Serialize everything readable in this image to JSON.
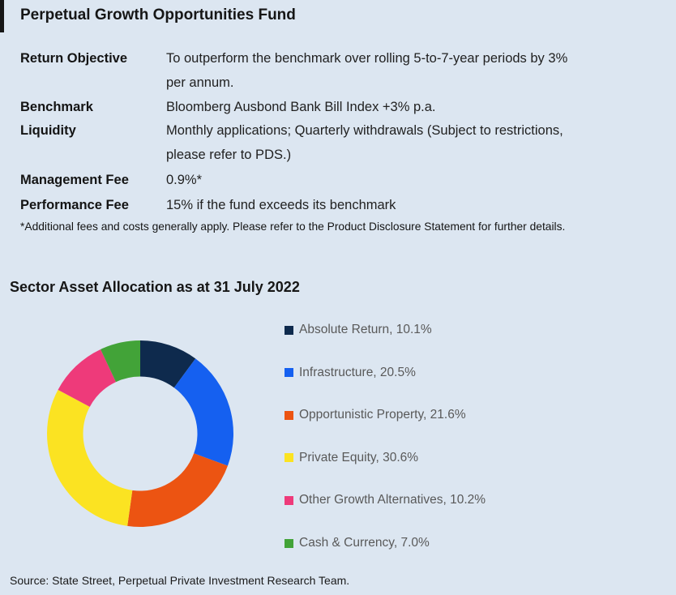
{
  "page": {
    "background": "#dce6f1",
    "accent_bar_color": "#161616"
  },
  "header": {
    "title": "Perpetual Growth Opportunities Fund"
  },
  "fund_details": {
    "rows": [
      {
        "label": "Return Objective",
        "value": "To outperform the benchmark over rolling 5-to-7-year periods by 3%\nper annum."
      },
      {
        "label": "Benchmark",
        "value": "Bloomberg Ausbond Bank Bill Index +3% p.a."
      },
      {
        "label": "Liquidity",
        "value": "Monthly applications; Quarterly withdrawals (Subject to restrictions,\nplease refer to PDS.)"
      },
      {
        "label": "Management Fee",
        "value": "0.9%*"
      },
      {
        "label": "Performance Fee",
        "value": "15% if the fund exceeds its benchmark"
      }
    ],
    "footnote": "*Additional fees and costs generally apply. Please refer to the Product Disclosure Statement for further details."
  },
  "chart_section": {
    "title": "Sector Asset Allocation as at 31 July 2022",
    "source": "Source: State Street, Perpetual Private Investment Research Team."
  },
  "chart_data": {
    "type": "pie",
    "subtype": "donut",
    "title": "Sector Asset Allocation as at 31 July 2022",
    "legend_position": "right",
    "start_angle_deg": 0,
    "direction": "clockwise",
    "segments": [
      {
        "label": "Absolute Return",
        "value": 10.1,
        "display": "10.1%",
        "color": "#0e2a4d"
      },
      {
        "label": "Infrastructure",
        "value": 20.5,
        "display": "20.5%",
        "color": "#1560f0"
      },
      {
        "label": "Opportunistic Property",
        "value": 21.6,
        "display": "21.6%",
        "color": "#ec5412"
      },
      {
        "label": "Private Equity",
        "value": 30.6,
        "display": "30.6%",
        "color": "#fbe322"
      },
      {
        "label": "Other Growth Alternatives",
        "value": 10.2,
        "display": "10.2%",
        "color": "#ee3a7a"
      },
      {
        "label": "Cash & Currency",
        "value": 7.0,
        "display": "7.0%",
        "color": "#42a338"
      }
    ]
  }
}
